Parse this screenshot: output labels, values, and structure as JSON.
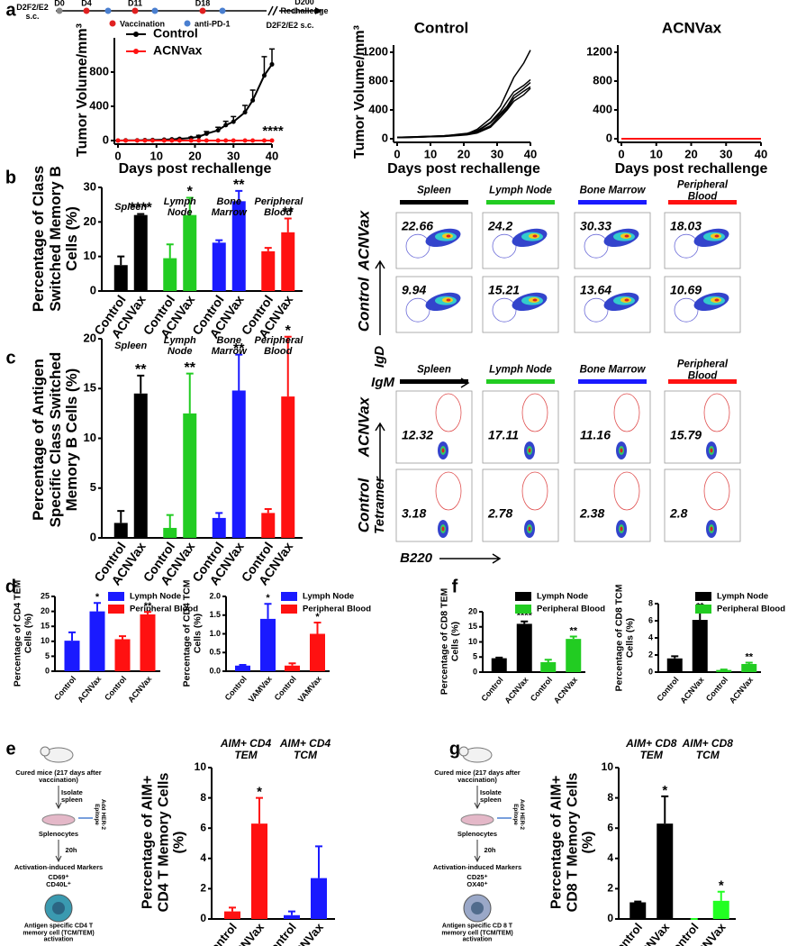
{
  "panel_labels": [
    "a",
    "b",
    "c",
    "d",
    "e",
    "f",
    "g"
  ],
  "timeline": {
    "start_note": "D2F2/E2 s.c.",
    "days": [
      "D0",
      "D4",
      "D11",
      "D18"
    ],
    "rechallenge": "D200 Rechallenge",
    "end_note": "D2F2/E2 s.c.",
    "legend": [
      "Vaccination",
      "anti-PD-1"
    ]
  },
  "chart_data": [
    {
      "type": "line",
      "x_label": "Days post rechallenge",
      "y_label": "Tumor Volume/mm³",
      "legend": "top-left",
      "annotation": "****",
      "x": [
        0,
        2,
        5,
        7,
        9,
        12,
        14,
        16,
        19,
        21,
        23,
        26,
        28,
        30,
        33,
        35,
        38,
        40
      ],
      "series": [
        {
          "name": "Control",
          "color": "#000000",
          "values": [
            0,
            2,
            3,
            5,
            7,
            10,
            14,
            20,
            30,
            45,
            80,
            120,
            180,
            220,
            330,
            470,
            760,
            890
          ],
          "errors": [
            0,
            1,
            1,
            2,
            2,
            3,
            4,
            6,
            10,
            15,
            25,
            35,
            45,
            60,
            80,
            120,
            220,
            180
          ]
        },
        {
          "name": "ACNVax",
          "color": "#ff1111",
          "values": [
            0,
            0,
            0,
            0,
            0,
            0,
            0,
            0,
            0,
            0,
            0,
            0,
            0,
            0,
            0,
            0,
            0,
            0
          ]
        }
      ],
      "xlim": [
        0,
        40
      ],
      "xticks": [
        0,
        10,
        20,
        30,
        40
      ],
      "ylim": [
        0,
        1200
      ],
      "yticks": [
        0,
        400,
        800
      ]
    },
    {
      "type": "line",
      "title": "Control",
      "x_label": "Days post rechallenge",
      "y_label": "Tumor Volume/mm³",
      "x": [
        0,
        4,
        7,
        10,
        14,
        17,
        21,
        24,
        28,
        31,
        33,
        35,
        38,
        40
      ],
      "series": [
        {
          "color": "#000000",
          "values": [
            20,
            25,
            30,
            35,
            40,
            50,
            70,
            130,
            280,
            450,
            650,
            850,
            1050,
            1230
          ]
        },
        {
          "color": "#000000",
          "values": [
            20,
            25,
            30,
            35,
            40,
            55,
            75,
            110,
            230,
            380,
            520,
            650,
            740,
            820
          ]
        },
        {
          "color": "#000000",
          "values": [
            15,
            20,
            25,
            30,
            40,
            50,
            65,
            100,
            220,
            350,
            450,
            600,
            700,
            780
          ]
        },
        {
          "color": "#000000",
          "values": [
            15,
            20,
            25,
            30,
            35,
            45,
            60,
            90,
            180,
            330,
            420,
            560,
            660,
            720
          ]
        },
        {
          "color": "#000000",
          "values": [
            15,
            18,
            22,
            28,
            32,
            40,
            55,
            80,
            160,
            300,
            400,
            520,
            610,
            700
          ]
        }
      ],
      "xlim": [
        0,
        40
      ],
      "xticks": [
        0,
        10,
        20,
        30,
        40
      ],
      "ylim": [
        0,
        1300
      ],
      "yticks": [
        0,
        400,
        800,
        1200
      ]
    },
    {
      "type": "line",
      "title": "ACNVax",
      "x_label": "Days post rechallenge",
      "x": [
        0,
        4,
        7,
        10,
        14,
        17,
        21,
        24,
        28,
        31,
        33,
        35,
        38,
        40
      ],
      "series": [
        {
          "color": "#ff1111",
          "values": [
            0,
            0,
            0,
            0,
            0,
            0,
            0,
            0,
            0,
            0,
            0,
            0,
            0,
            0
          ]
        }
      ],
      "xlim": [
        0,
        40
      ],
      "xticks": [
        0,
        10,
        20,
        30,
        40
      ],
      "ylim": [
        0,
        1300
      ],
      "yticks": [
        0,
        400,
        800,
        1200
      ]
    },
    {
      "type": "bar",
      "y_label": "Percentage of Class Switched Memory B Cells (%)",
      "categories": [
        "Control",
        "ACNVax"
      ],
      "series": [
        {
          "name": "Spleen",
          "color": "#000000",
          "values": [
            7.5,
            22
          ],
          "errors": [
            2.5,
            0.3
          ],
          "stars": [
            null,
            "****"
          ]
        },
        {
          "name": "Lymph Node",
          "color": "#22cc22",
          "values": [
            9.5,
            22
          ],
          "errors": [
            4,
            5
          ],
          "stars": [
            null,
            "*"
          ]
        },
        {
          "name": "Bone Marrow",
          "color": "#1a1aff",
          "values": [
            14,
            26
          ],
          "errors": [
            0.7,
            3
          ],
          "stars": [
            null,
            "**"
          ]
        },
        {
          "name": "Peripheral Blood",
          "color": "#ff1111",
          "values": [
            11.5,
            17
          ],
          "errors": [
            1,
            4
          ],
          "stars": [
            null,
            "**"
          ]
        }
      ],
      "ylim": [
        0,
        30
      ],
      "yticks": [
        0,
        10,
        20,
        30
      ]
    },
    {
      "type": "bar",
      "y_label": "Percentage of Antigen Specific Class Switched Memory B Cells (%)",
      "categories": [
        "Control",
        "ACNVax"
      ],
      "series": [
        {
          "name": "Spleen",
          "color": "#000000",
          "values": [
            1.5,
            14.5
          ],
          "errors": [
            1.2,
            1.8
          ],
          "stars": [
            null,
            "**"
          ]
        },
        {
          "name": "Lymph Node",
          "color": "#22cc22",
          "values": [
            1,
            12.5
          ],
          "errors": [
            1.3,
            4
          ],
          "stars": [
            null,
            "**"
          ]
        },
        {
          "name": "Bone Marrow",
          "color": "#1a1aff",
          "values": [
            2,
            14.8
          ],
          "errors": [
            0.5,
            3.6
          ],
          "stars": [
            null,
            "**"
          ]
        },
        {
          "name": "Peripheral Blood",
          "color": "#ff1111",
          "values": [
            2.5,
            14.2
          ],
          "errors": [
            0.4,
            6
          ],
          "stars": [
            null,
            "*"
          ]
        }
      ],
      "ylim": [
        0,
        20
      ],
      "yticks": [
        0,
        5,
        10,
        15,
        20
      ]
    },
    {
      "type": "bar",
      "y_label": "Percentage of CD4 TEM Cells (%)",
      "legend": "top-right",
      "categories": [
        "Control",
        "ACNVax"
      ],
      "series": [
        {
          "name": "Lymph Node",
          "color": "#1a1aff",
          "values": [
            10.2,
            20
          ],
          "errors": [
            2.8,
            2.8
          ],
          "stars": [
            null,
            "*"
          ]
        },
        {
          "name": "Peripheral Blood",
          "color": "#ff1111",
          "values": [
            10.7,
            19
          ],
          "errors": [
            1,
            0.8
          ],
          "stars": [
            null,
            "**"
          ]
        }
      ],
      "ylim": [
        0,
        25
      ],
      "yticks": [
        0,
        5,
        10,
        15,
        20,
        25
      ]
    },
    {
      "type": "bar",
      "y_label": "Percentage of CD4 TCM Cells (%)",
      "legend": "top-right",
      "categories": [
        "Control",
        "VAMVax"
      ],
      "series": [
        {
          "name": "Lymph Node",
          "color": "#1a1aff",
          "values": [
            0.15,
            1.4
          ],
          "errors": [
            0.02,
            0.4
          ],
          "stars": [
            null,
            "*"
          ]
        },
        {
          "name": "Peripheral Blood",
          "color": "#ff1111",
          "values": [
            0.15,
            1.0
          ],
          "errors": [
            0.06,
            0.3
          ],
          "stars": [
            null,
            "*"
          ]
        }
      ],
      "ylim": [
        0,
        2
      ],
      "yticks": [
        {
          "value": 0,
          "label": "0.0"
        },
        0.5,
        {
          "value": 1,
          "label": "1.0"
        },
        1.5,
        {
          "value": 2,
          "label": "2.0"
        }
      ]
    },
    {
      "type": "bar",
      "y_label": "Percentage of CD8 TEM Cells (%)",
      "legend": "top-right",
      "categories": [
        "Control",
        "ACNVax"
      ],
      "series": [
        {
          "name": "Lymph Node",
          "color": "#000000",
          "values": [
            4.6,
            16
          ],
          "errors": [
            0.2,
            0.8
          ],
          "stars": [
            null,
            "****"
          ]
        },
        {
          "name": "Peripheral Blood",
          "color": "#22cc22",
          "values": [
            3.3,
            11
          ],
          "errors": [
            0.8,
            0.8
          ],
          "stars": [
            null,
            "**"
          ]
        }
      ],
      "ylim": [
        0,
        20
      ],
      "yticks": [
        0,
        5,
        10,
        15,
        20
      ]
    },
    {
      "type": "bar",
      "y_label": "Percentage of CD8 TCM Cells (%)",
      "legend": "top-right",
      "categories": [
        "Control",
        "ACNVax"
      ],
      "series": [
        {
          "name": "Lymph Node",
          "color": "#000000",
          "values": [
            1.6,
            6.1
          ],
          "errors": [
            0.25,
            0.9
          ],
          "stars": [
            null,
            "**"
          ]
        },
        {
          "name": "Peripheral Blood",
          "color": "#22cc22",
          "values": [
            0.25,
            0.95
          ],
          "errors": [
            0.05,
            0.15
          ],
          "stars": [
            null,
            "**"
          ]
        }
      ],
      "ylim": [
        0,
        8
      ],
      "yticks": [
        0,
        2,
        4,
        6,
        8
      ]
    },
    {
      "type": "bar",
      "y_label": "Percentage of AIM+ CD4 T Memory Cells (%)",
      "categories": [
        "Control",
        "ACNVax"
      ],
      "series": [
        {
          "name": "AIM+ CD4 TEM",
          "color": "#ff1111",
          "values": [
            0.5,
            6.3
          ],
          "errors": [
            0.25,
            1.7
          ],
          "stars": [
            null,
            "*"
          ]
        },
        {
          "name": "AIM+ CD4 TCM",
          "color": "#1a1aff",
          "values": [
            0.25,
            2.7
          ],
          "errors": [
            0.25,
            2.1
          ],
          "stars": [
            null,
            null
          ]
        }
      ],
      "ylim": [
        0,
        10
      ],
      "yticks": [
        0,
        2,
        4,
        6,
        8,
        10
      ]
    },
    {
      "type": "bar",
      "y_label": "Percentage of AIM+ CD8 T Memory Cells (%)",
      "categories": [
        "Control",
        "ACNVax"
      ],
      "series": [
        {
          "name": "AIM+ CD8 TEM",
          "color": "#000000",
          "values": [
            1.1,
            6.3
          ],
          "errors": [
            0.05,
            1.8
          ],
          "stars": [
            null,
            "*"
          ]
        },
        {
          "name": "AIM+ CD8 TCM",
          "color": "#22ff22",
          "values": [
            0,
            1.2
          ],
          "errors": [
            0,
            0.6
          ],
          "stars": [
            null,
            "*"
          ]
        }
      ],
      "ylim": [
        0,
        10
      ],
      "yticks": [
        0,
        2,
        4,
        6,
        8,
        10
      ]
    }
  ],
  "flow_b": {
    "columns": [
      "Spleen",
      "Lymph Node",
      "Bone Marrow",
      "Peripheral Blood"
    ],
    "column_colors": [
      "#000000",
      "#22cc22",
      "#1a1aff",
      "#ff1111"
    ],
    "rows": [
      {
        "label": "ACNVax",
        "values": [
          22.66,
          24.2,
          30.33,
          18.03
        ]
      },
      {
        "label": "Control",
        "values": [
          9.94,
          15.21,
          13.64,
          10.69
        ]
      }
    ],
    "y_axis": "IgD",
    "x_axis": "IgM"
  },
  "flow_c": {
    "columns": [
      "Spleen",
      "Lymph Node",
      "Bone Marrow",
      "Peripheral Blood"
    ],
    "column_colors": [
      "#000000",
      "#22cc22",
      "#1a1aff",
      "#ff1111"
    ],
    "rows": [
      {
        "label": "ACNVax",
        "values": [
          12.32,
          17.11,
          11.16,
          15.79
        ]
      },
      {
        "label": "Control",
        "values": [
          3.18,
          2.78,
          2.38,
          2.8
        ]
      }
    ],
    "y_axis": "Tetramer",
    "x_axis": "B220"
  },
  "schematic_e": {
    "source": "Cured mice (217 days after vaccination)",
    "isolate": "Isolate spleen",
    "cells": "Splenocytes",
    "stimulus": "Add HER-2 Epitope",
    "time": "20h",
    "assay": "Activation-induced Markers",
    "markers": "CD69⁺ CD40L⁺",
    "result": "Antigen specific CD4 T memory cell (TCM/TEM) activation"
  },
  "schematic_g": {
    "source": "Cured mice (217 days after vaccination)",
    "isolate": "Isolate spleen",
    "cells": "Splenocytes",
    "stimulus": "Add HER-2 Epitope",
    "time": "20h",
    "assay": "Activation-induced Markers",
    "markers": "CD25⁺ OX40⁺",
    "result": "Antigen specific CD 8 T memory cell (TCM/TEM) activation"
  }
}
